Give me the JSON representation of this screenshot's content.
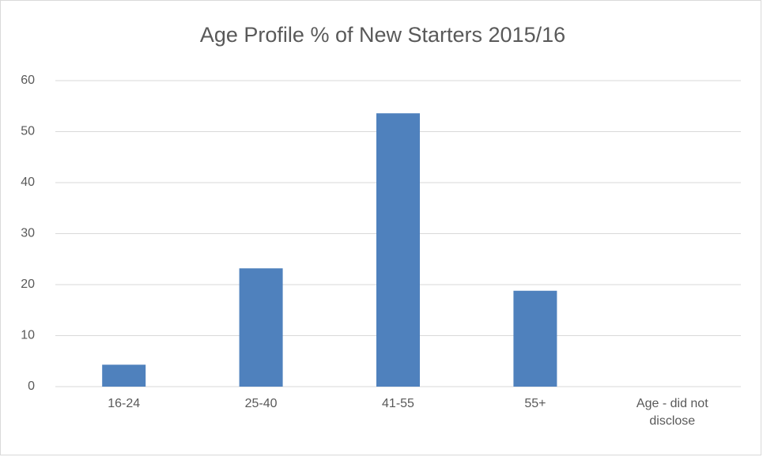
{
  "chart_data": {
    "type": "bar",
    "title": "Age Profile % of New Starters 2015/16",
    "categories": [
      "16-24",
      "25-40",
      "41-55",
      "55+",
      "Age - did not disclose"
    ],
    "values": [
      4.3,
      23.2,
      53.6,
      18.8,
      0
    ],
    "color": "#4f81bd",
    "ylim": [
      0,
      60
    ],
    "yticks": [
      0,
      10,
      20,
      30,
      40,
      50,
      60
    ],
    "grid": true
  }
}
